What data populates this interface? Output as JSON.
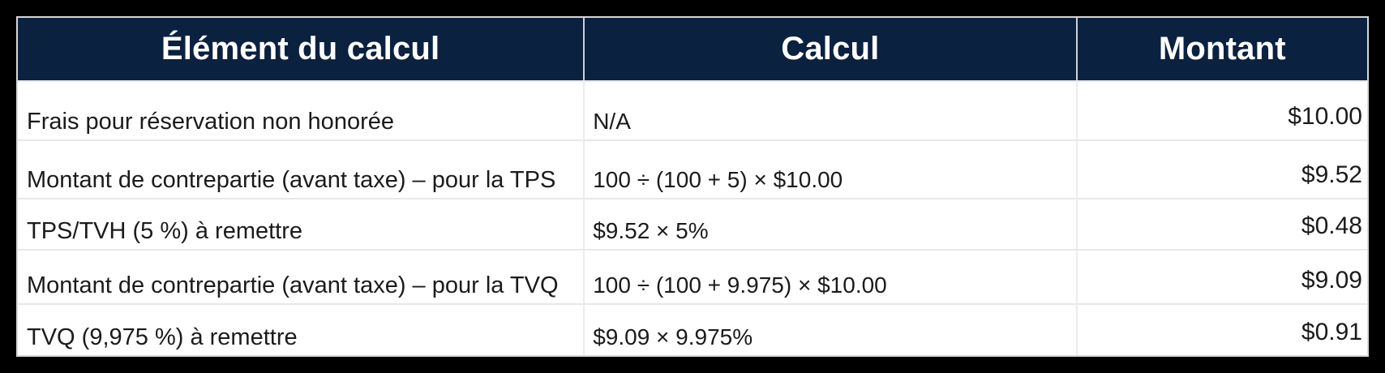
{
  "table": {
    "headers": {
      "element": "Élément du calcul",
      "calc": "Calcul",
      "amount": "Montant"
    },
    "rows": [
      {
        "element": "Frais pour réservation non honorée",
        "calc": "N/A",
        "amount": "$10.00"
      },
      {
        "element": "Montant de contrepartie (avant taxe) – pour la TPS",
        "calc": "100 ÷ (100 + 5) × $10.00",
        "amount": "$9.52"
      },
      {
        "element": "TPS/TVH (5 %) à remettre",
        "calc": "$9.52 × 5%",
        "amount": "$0.48"
      },
      {
        "element": "Montant de contrepartie (avant taxe) – pour la TVQ",
        "calc": "100 ÷ (100 + 9.975) × $10.00",
        "amount": "$9.09"
      },
      {
        "element": "TVQ (9,975 %) à remettre",
        "calc": "$9.09 × 9.975%",
        "amount": "$0.91"
      }
    ]
  },
  "colors": {
    "frame": "#000000",
    "header_bg": "#0b2140",
    "header_text": "#ffffff",
    "body_bg": "#ffffff",
    "body_text": "#1b1b1b",
    "divider": "#e8e8e8",
    "outer_border": "#d7d7d7"
  }
}
